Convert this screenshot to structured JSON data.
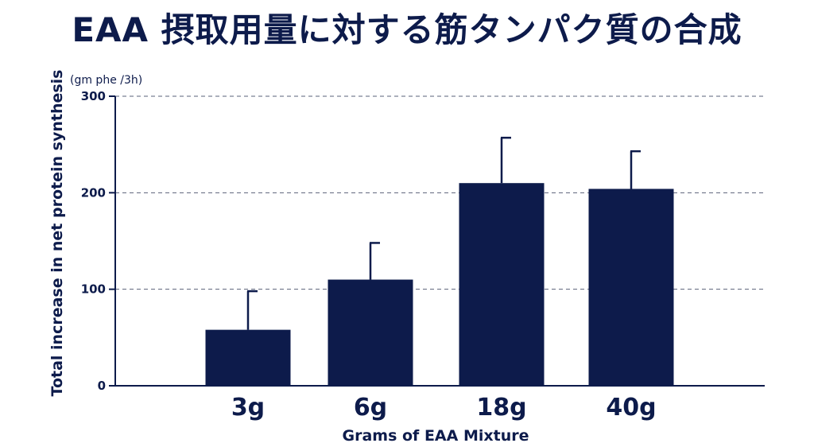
{
  "chart_data": {
    "type": "bar",
    "title": "EAA 摂取用量に対する筋タンパク質の合成",
    "xlabel": "Grams of EAA Mixture",
    "ylabel": "Total increase in net protein synthesis",
    "y_unit": "(gm phe /3h)",
    "categories": [
      "3g",
      "6g",
      "18g",
      "40g"
    ],
    "values": [
      58,
      110,
      210,
      204
    ],
    "error_upper": [
      98,
      148,
      257,
      243
    ],
    "ylim": [
      0,
      300
    ],
    "yticks": [
      0,
      100,
      200,
      300
    ],
    "grid": "dashed horizontal",
    "legend": "none",
    "colors": {
      "bar": "#0d1b4b",
      "text": "#0d1b4b",
      "grid": "#5a6078"
    }
  }
}
